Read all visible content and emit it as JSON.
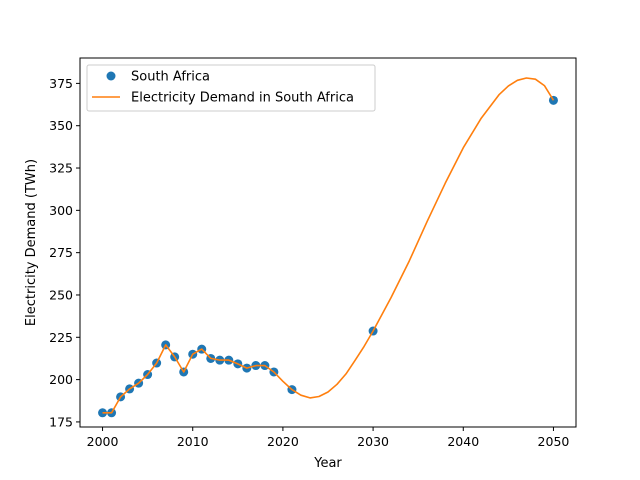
{
  "chart_data": {
    "type": "scatter",
    "xlabel": "Year",
    "ylabel": "Electricity Demand (TWh)",
    "xlim": [
      1997.5,
      2052.5
    ],
    "ylim": [
      172,
      390
    ],
    "xticks": [
      2000,
      2010,
      2020,
      2030,
      2040,
      2050
    ],
    "yticks": [
      175,
      200,
      225,
      250,
      275,
      300,
      325,
      350,
      375
    ],
    "legend_position": "upper-left",
    "series": [
      {
        "name": "South Africa",
        "kind": "scatter",
        "color": "#1f77b4",
        "x": [
          2000,
          2001,
          2002,
          2003,
          2004,
          2005,
          2006,
          2007,
          2008,
          2009,
          2010,
          2011,
          2012,
          2013,
          2014,
          2015,
          2016,
          2017,
          2018,
          2019,
          2021,
          2030,
          2050
        ],
        "y": [
          180.4,
          180.4,
          189.8,
          194.5,
          197.9,
          203.0,
          209.8,
          220.5,
          213.4,
          204.5,
          215.0,
          218.0,
          212.5,
          211.5,
          211.5,
          209.3,
          206.8,
          208.3,
          208.3,
          204.5,
          194.1,
          228.7,
          365.0
        ]
      },
      {
        "name": "Electricity Demand in South Africa",
        "kind": "line",
        "color": "#ff7f0e",
        "x": [
          2000,
          2001,
          2002,
          2003,
          2004,
          2005,
          2006,
          2007,
          2008,
          2009,
          2010,
          2011,
          2012,
          2013,
          2014,
          2015,
          2016,
          2017,
          2018,
          2019,
          2020,
          2021,
          2022,
          2023,
          2024,
          2025,
          2026,
          2027,
          2028,
          2029,
          2030,
          2032,
          2034,
          2036,
          2038,
          2040,
          2042,
          2044,
          2045,
          2046,
          2047,
          2048,
          2049,
          2050
        ],
        "y": [
          180.4,
          180.4,
          189.8,
          194.5,
          197.9,
          203.0,
          209.8,
          220.5,
          213.4,
          204.5,
          215.0,
          218.0,
          212.5,
          211.5,
          211.5,
          209.3,
          206.8,
          208.3,
          208.3,
          204.5,
          199.0,
          194.1,
          190.8,
          189.2,
          190.0,
          192.7,
          197.2,
          203.4,
          211.4,
          219.6,
          228.7,
          248.5,
          270.0,
          293.5,
          316.0,
          337.0,
          354.5,
          368.5,
          373.5,
          376.8,
          378.2,
          377.5,
          373.7,
          365.0
        ]
      }
    ]
  }
}
